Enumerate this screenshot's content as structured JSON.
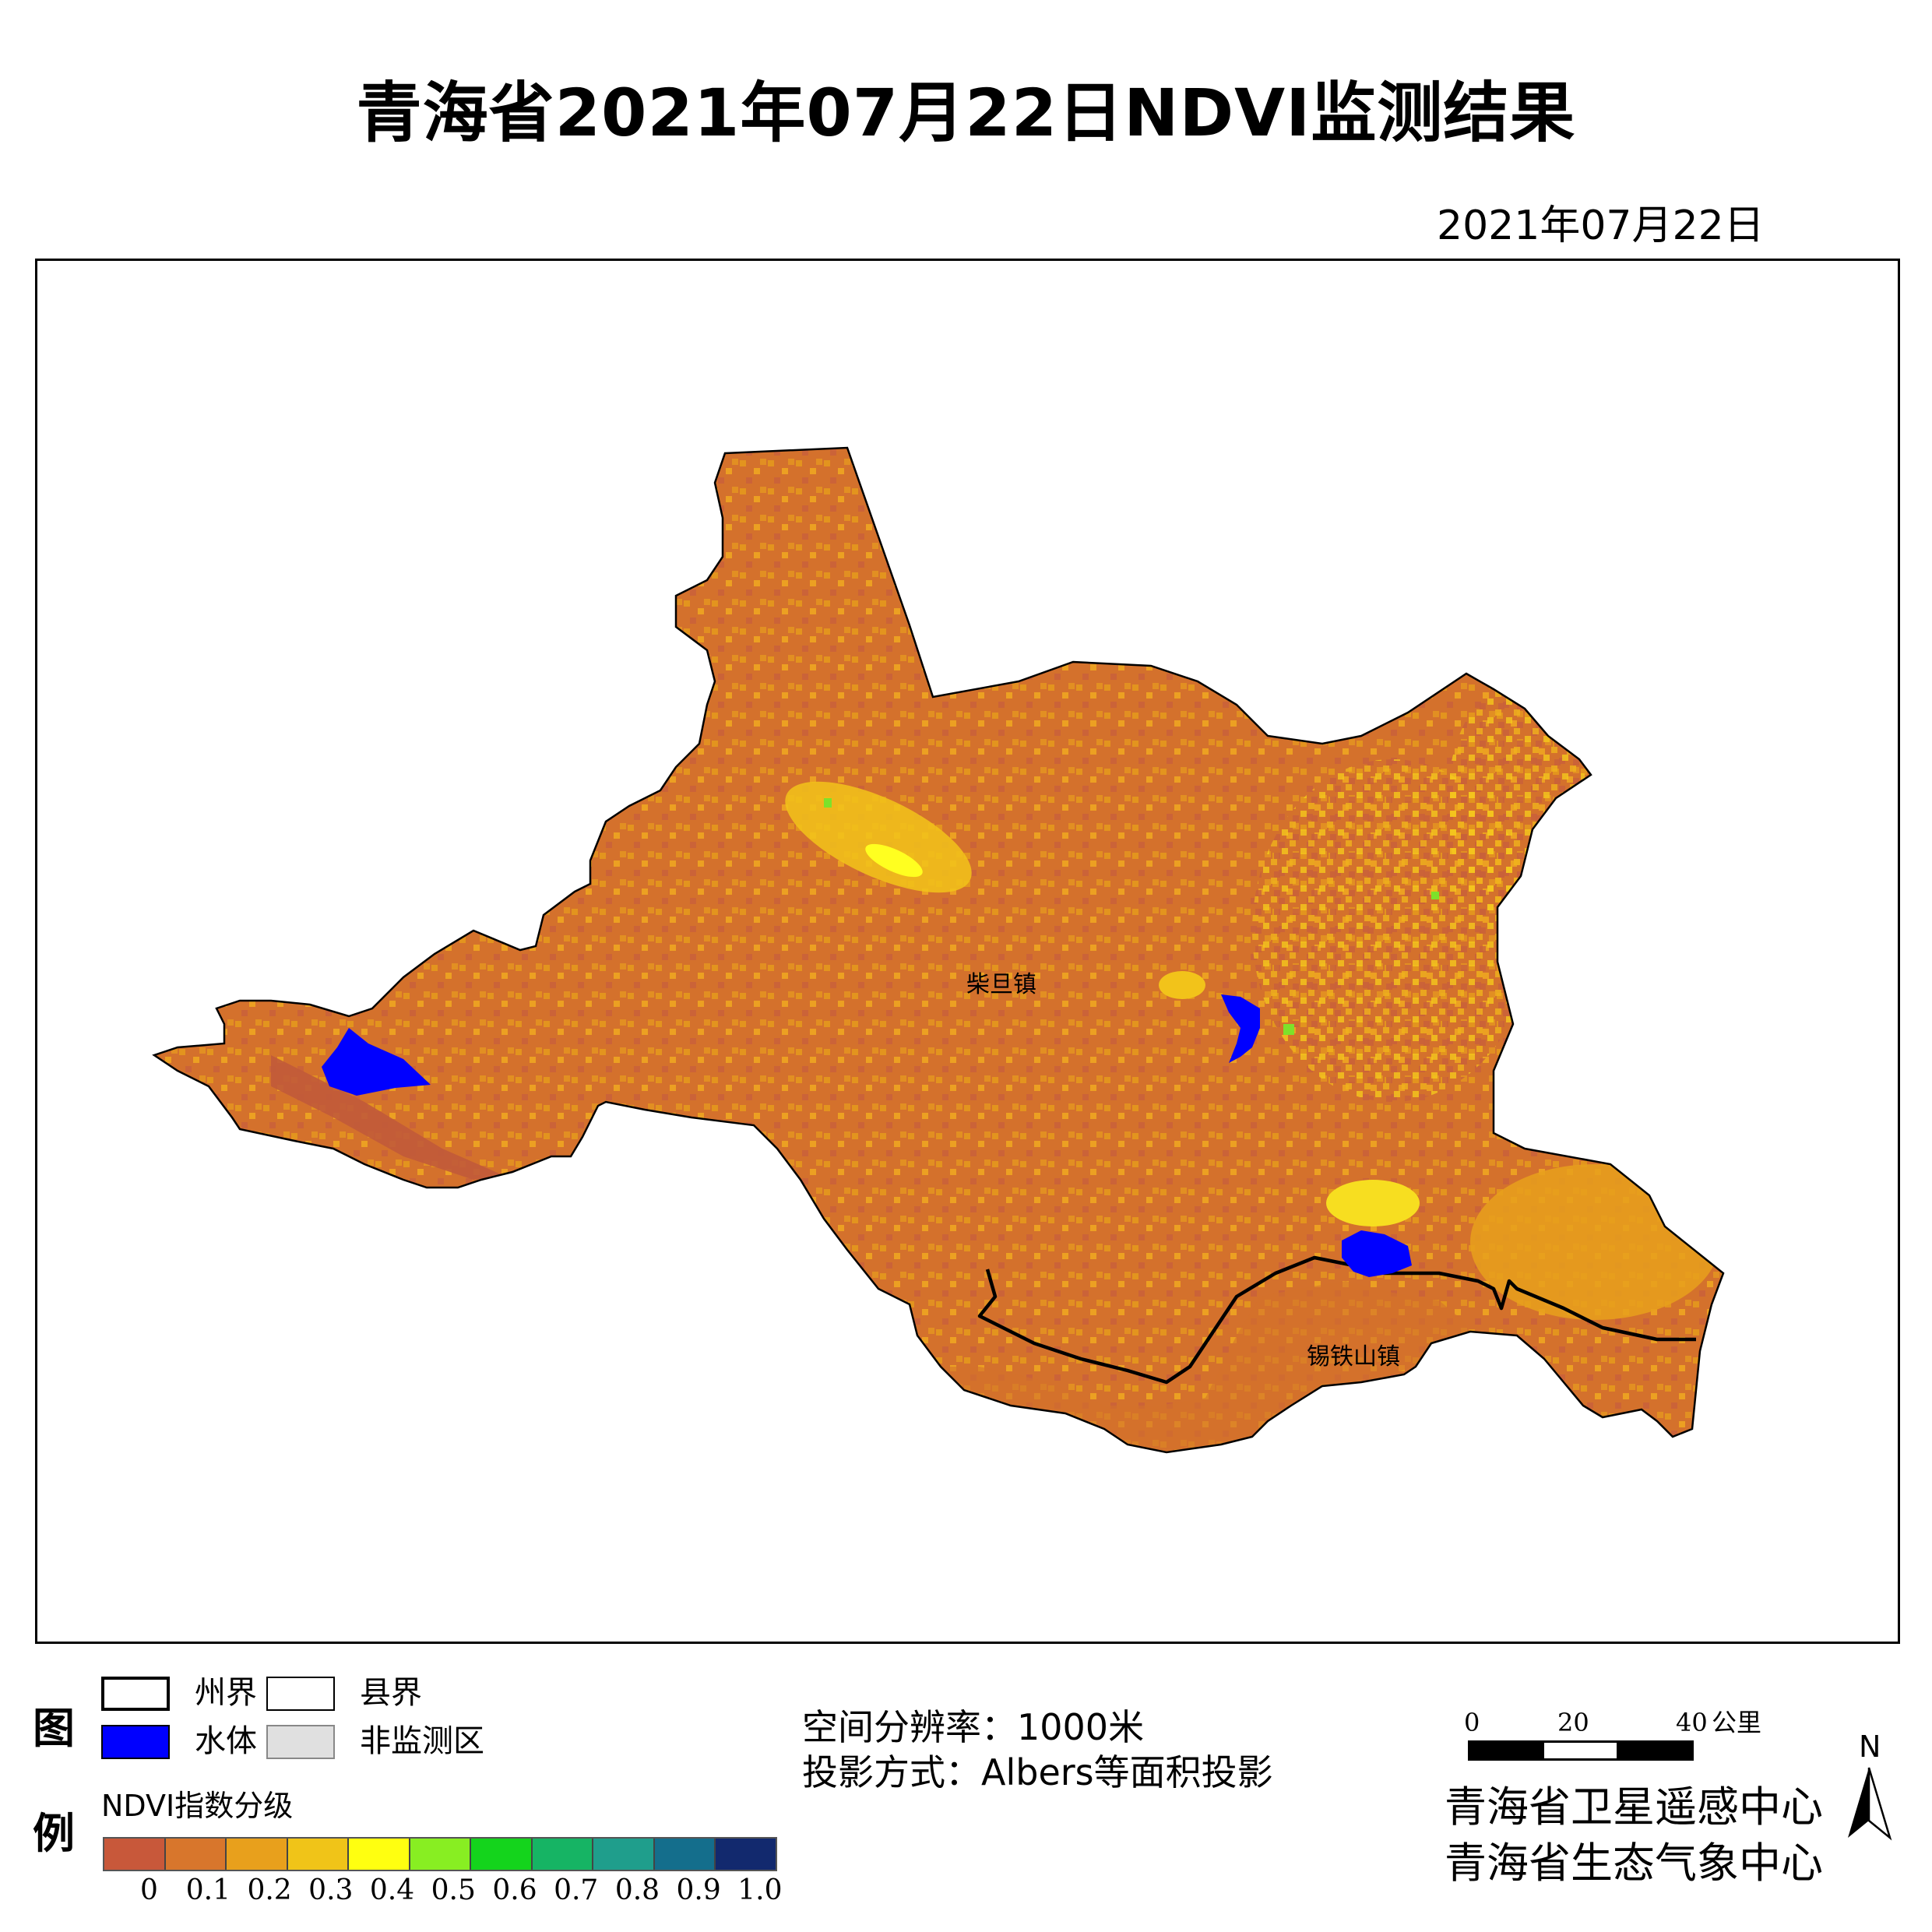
{
  "title": "青海省2021年07月22日NDVI监测结果",
  "date": "2021年07月22日",
  "map": {
    "places": [
      {
        "name": "柴旦镇"
      },
      {
        "name": "锡铁山镇"
      }
    ],
    "colors": {
      "base": "#d4712c",
      "mid": "#e69a1c",
      "yellow": "#f2c31a",
      "light": "#f7de20",
      "green": "#7de22a",
      "dark": "#c15a3a",
      "water": "#0000ff"
    }
  },
  "legend": {
    "word_top": "图",
    "word_bottom": "例",
    "prefecture_border": "州界",
    "county_border": "县界",
    "water": "水体",
    "non_monitored": "非监测区",
    "ndvi_title": "NDVI指数分级",
    "ramp_colors": [
      "#c8583a",
      "#d8762c",
      "#e8a01c",
      "#f0c418",
      "#ffff10",
      "#88ee22",
      "#14d41c",
      "#16b464",
      "#1f9e8c",
      "#146e8c",
      "#12296e"
    ],
    "ticks": [
      "0",
      "0.1",
      "0.2",
      "0.3",
      "0.4",
      "0.5",
      "0.6",
      "0.7",
      "0.8",
      "0.9",
      "1.0"
    ]
  },
  "info": {
    "resolution": "空间分辨率：1000米",
    "projection": "投影方式：Albers等面积投影"
  },
  "scalebar": {
    "labels": [
      "0",
      "20",
      "40",
      "公里"
    ]
  },
  "north_label": "N",
  "organizations": [
    "青海省卫星遥感中心",
    "青海省生态气象中心"
  ]
}
